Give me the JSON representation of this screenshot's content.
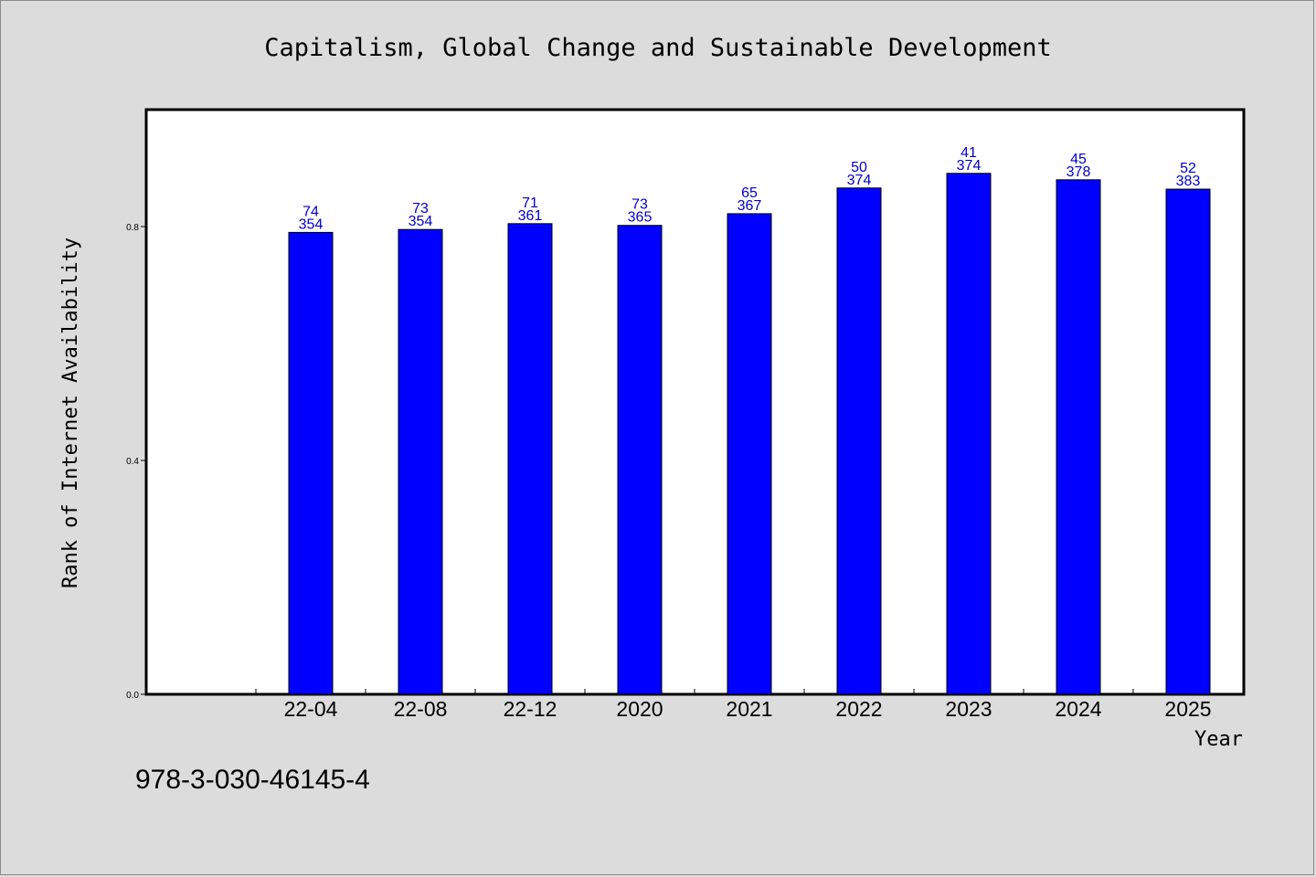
{
  "chart_data": {
    "type": "bar",
    "title": "Capitalism, Global Change and Sustainable Development",
    "xlabel": "Year",
    "ylabel": "Rank of Internet Availability",
    "categories": [
      "22-04",
      "22-08",
      "22-12",
      "2020",
      "2021",
      "2022",
      "2023",
      "2024",
      "2025"
    ],
    "values": [
      0.79,
      0.795,
      0.805,
      0.802,
      0.822,
      0.866,
      0.891,
      0.88,
      0.864
    ],
    "label_top": [
      "74",
      "73",
      "71",
      "73",
      "65",
      "50",
      "41",
      "45",
      "52"
    ],
    "label_bottom": [
      "354",
      "354",
      "361",
      "365",
      "367",
      "374",
      "374",
      "378",
      "383"
    ],
    "ylim": [
      0,
      1.0
    ],
    "yticks": [
      0.0,
      0.4,
      0.8
    ],
    "ytick_labels": [
      "0.0",
      "0.4",
      "0.8"
    ],
    "bar_color": "#0000ff",
    "label_color": "#0000cc",
    "grid": false,
    "legend": "none"
  },
  "footer": {
    "isbn": "978-3-030-46145-4"
  }
}
